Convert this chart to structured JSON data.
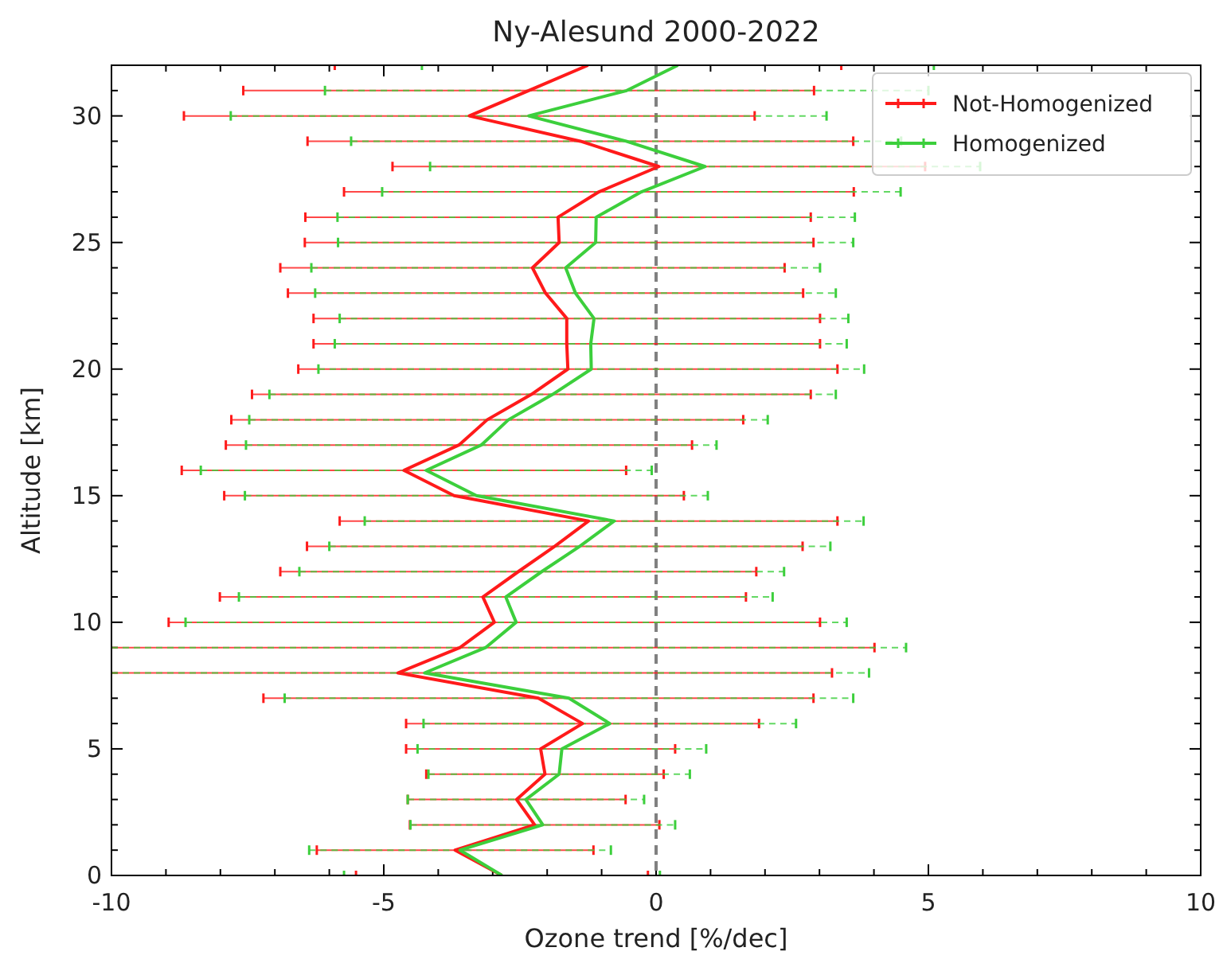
{
  "chart_data": {
    "type": "line",
    "orientation": "horizontal",
    "title": "Ny-Alesund 2000-2022",
    "xlabel": "Ozone trend [%/dec]",
    "ylabel": "Altitude [km]",
    "x": [
      0,
      1,
      2,
      3,
      4,
      5,
      6,
      7,
      8,
      9,
      10,
      11,
      12,
      13,
      14,
      15,
      16,
      17,
      18,
      19,
      20,
      21,
      22,
      23,
      24,
      25,
      26,
      27,
      28,
      29,
      30,
      31,
      32
    ],
    "series": [
      {
        "name": "Not-Homogenized",
        "color": "#ff1a1a",
        "values": [
          -2.83,
          -3.69,
          -2.23,
          -2.56,
          -2.04,
          -2.12,
          -1.35,
          -2.16,
          -4.74,
          -3.6,
          -2.97,
          -3.18,
          -2.53,
          -1.86,
          -1.24,
          -3.71,
          -4.63,
          -3.62,
          -3.1,
          -2.29,
          -1.62,
          -1.64,
          -1.64,
          -2.03,
          -2.27,
          -1.78,
          -1.8,
          -1.05,
          0.05,
          -1.39,
          -3.43,
          -2.34,
          -1.25
        ],
        "errors": [
          2.68,
          2.54,
          2.29,
          2.0,
          2.18,
          2.47,
          3.24,
          5.05,
          [
            -10,
            3.23
          ],
          [
            -10,
            4.01
          ],
          5.98,
          4.83,
          4.37,
          4.55,
          4.57,
          4.22,
          4.08,
          4.28,
          4.7,
          5.13,
          4.95,
          4.65,
          4.65,
          4.73,
          4.63,
          4.67,
          4.64,
          4.68,
          4.89,
          5.01,
          5.24,
          5.24,
          4.65
        ]
      },
      {
        "name": "Homogenized",
        "color": "#3ccf3c",
        "values": [
          -2.83,
          -3.6,
          -2.08,
          -2.39,
          -1.78,
          -1.73,
          -0.85,
          -1.6,
          -4.25,
          -3.13,
          -2.57,
          -2.76,
          -2.1,
          -1.4,
          -0.77,
          -3.3,
          -4.22,
          -3.21,
          -2.71,
          -1.9,
          -1.19,
          -1.2,
          -1.14,
          -1.48,
          -1.66,
          -1.11,
          -1.1,
          -0.27,
          0.9,
          -0.55,
          -2.34,
          -0.54,
          0.4
        ],
        "errors": [
          2.9,
          2.77,
          2.43,
          2.17,
          2.4,
          2.65,
          3.42,
          5.22,
          [
            -10,
            3.91
          ],
          [
            -10,
            4.59
          ],
          6.07,
          4.9,
          4.45,
          4.6,
          4.58,
          4.25,
          4.14,
          4.32,
          4.76,
          5.2,
          5.01,
          4.7,
          4.67,
          4.78,
          4.67,
          4.73,
          4.75,
          4.76,
          5.05,
          5.05,
          5.47,
          5.54,
          4.7
        ]
      }
    ],
    "xlim": [
      -10,
      10
    ],
    "xticks": [
      -10,
      {
        "value": -9,
        "label": null
      },
      {
        "value": -8,
        "label": null
      },
      {
        "value": -7,
        "label": null
      },
      {
        "value": -6,
        "label": null
      },
      -5,
      {
        "value": -4,
        "label": null
      },
      {
        "value": -3,
        "label": null
      },
      {
        "value": -2,
        "label": null
      },
      {
        "value": -1,
        "label": null
      },
      0,
      {
        "value": 1,
        "label": null
      },
      {
        "value": 2,
        "label": null
      },
      {
        "value": 3,
        "label": null
      },
      {
        "value": 4,
        "label": null
      },
      5,
      {
        "value": 6,
        "label": null
      },
      {
        "value": 7,
        "label": null
      },
      {
        "value": 8,
        "label": null
      },
      {
        "value": 9,
        "label": null
      },
      10
    ],
    "ylim": [
      0,
      32
    ],
    "yticks": [
      0,
      {
        "value": 1,
        "label": null
      },
      {
        "value": 2,
        "label": null
      },
      {
        "value": 3,
        "label": null
      },
      {
        "value": 4,
        "label": null
      },
      5,
      {
        "value": 6,
        "label": null
      },
      {
        "value": 7,
        "label": null
      },
      {
        "value": 8,
        "label": null
      },
      {
        "value": 9,
        "label": null
      },
      10,
      {
        "value": 11,
        "label": null
      },
      {
        "value": 12,
        "label": null
      },
      {
        "value": 13,
        "label": null
      },
      {
        "value": 14,
        "label": null
      },
      15,
      {
        "value": 16,
        "label": null
      },
      {
        "value": 17,
        "label": null
      },
      {
        "value": 18,
        "label": null
      },
      {
        "value": 19,
        "label": null
      },
      20,
      {
        "value": 21,
        "label": null
      },
      {
        "value": 22,
        "label": null
      },
      {
        "value": 23,
        "label": null
      },
      {
        "value": 24,
        "label": null
      },
      25,
      {
        "value": 26,
        "label": null
      },
      {
        "value": 27,
        "label": null
      },
      {
        "value": 28,
        "label": null
      },
      {
        "value": 29,
        "label": null
      },
      30,
      {
        "value": 31,
        "label": null
      },
      {
        "value": 32,
        "label": null
      }
    ],
    "ref_lines": [
      {
        "axis": "x",
        "value": 0,
        "label": null,
        "color": "#808080",
        "line_style": "dashed"
      }
    ],
    "legend": "top right",
    "marker": "none",
    "grid": false
  }
}
